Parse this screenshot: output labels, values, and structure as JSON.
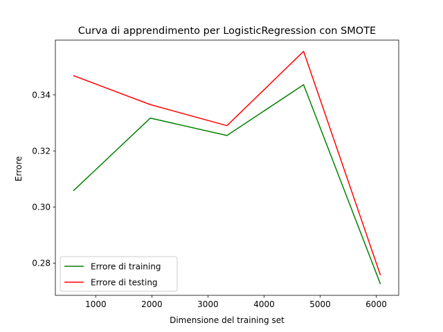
{
  "chart_data": {
    "type": "line",
    "title": "Curva di apprendimento per LogisticRegression con SMOTE",
    "xlabel": "Dimensione del training set",
    "ylabel": "Errore",
    "x": [
      607,
      1973,
      3339,
      4705,
      6071
    ],
    "xlim": [
      280,
      6400
    ],
    "ylim": [
      0.2685,
      0.3595
    ],
    "xticks": [
      1000,
      2000,
      3000,
      4000,
      5000,
      6000
    ],
    "xtick_labels": [
      "1000",
      "2000",
      "3000",
      "4000",
      "5000",
      "6000"
    ],
    "yticks": [
      0.28,
      0.3,
      0.32,
      0.34
    ],
    "ytick_labels": [
      "0.28",
      "0.30",
      "0.32",
      "0.34"
    ],
    "grid": false,
    "legend_position": "lower-left",
    "series": [
      {
        "name": "Errore di training",
        "color": "#008000",
        "values": [
          0.3059,
          0.3317,
          0.3255,
          0.3436,
          0.2727
        ]
      },
      {
        "name": "Errore di testing",
        "color": "#ff0000",
        "values": [
          0.3468,
          0.3365,
          0.329,
          0.3555,
          0.2759
        ]
      }
    ]
  }
}
